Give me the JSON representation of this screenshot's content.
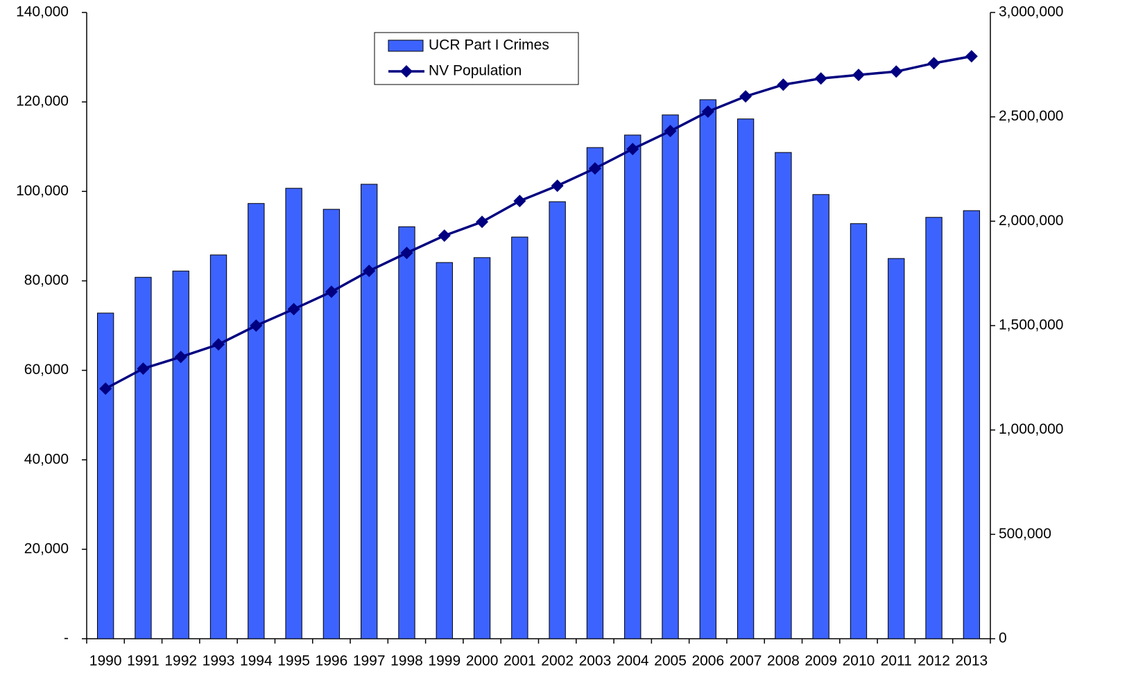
{
  "chart_data": {
    "type": "bar",
    "categories": [
      "1990",
      "1991",
      "1992",
      "1993",
      "1994",
      "1995",
      "1996",
      "1997",
      "1998",
      "1999",
      "2000",
      "2001",
      "2002",
      "2003",
      "2004",
      "2005",
      "2006",
      "2007",
      "2008",
      "2009",
      "2010",
      "2011",
      "2012",
      "2013"
    ],
    "series": [
      {
        "name": "UCR Part I Crimes",
        "type": "bar",
        "color": "#3d63ff",
        "values": [
          72800,
          80800,
          82200,
          85800,
          97300,
          100700,
          96000,
          101600,
          92100,
          84100,
          85200,
          89800,
          97700,
          109800,
          112600,
          117100,
          120500,
          116200,
          108700,
          99300,
          92800,
          85000,
          94200,
          95700
        ]
      },
      {
        "name": "NV Population",
        "type": "line",
        "axis": "y2",
        "color": "#000080",
        "values": [
          1198000,
          1294000,
          1350000,
          1410000,
          1500000,
          1579000,
          1662000,
          1762000,
          1848000,
          1931000,
          1997000,
          2097000,
          2170000,
          2253000,
          2346000,
          2432000,
          2525000,
          2598000,
          2654000,
          2684000,
          2701000,
          2717000,
          2757000,
          2790000
        ]
      }
    ],
    "ylim": [
      0,
      140000
    ],
    "yticks": [
      {
        "value": 0,
        "label": "-"
      },
      {
        "value": 20000,
        "label": "20,000"
      },
      {
        "value": 40000,
        "label": "40,000"
      },
      {
        "value": 60000,
        "label": "60,000"
      },
      {
        "value": 80000,
        "label": "80,000"
      },
      {
        "value": 100000,
        "label": "100,000"
      },
      {
        "value": 120000,
        "label": "120,000"
      },
      {
        "value": 140000,
        "label": "140,000"
      }
    ],
    "y2lim": [
      0,
      3000000
    ],
    "y2ticks": [
      0,
      {
        "value": 500000,
        "label": "500,000"
      },
      {
        "value": 1000000,
        "label": "1,000,000"
      },
      {
        "value": 1500000,
        "label": "1,500,000"
      },
      {
        "value": 2000000,
        "label": "2,000,000"
      },
      {
        "value": 2500000,
        "label": "2,500,000"
      },
      {
        "value": 3000000,
        "label": "3,000,000"
      }
    ],
    "grid": false,
    "legend": "top"
  }
}
